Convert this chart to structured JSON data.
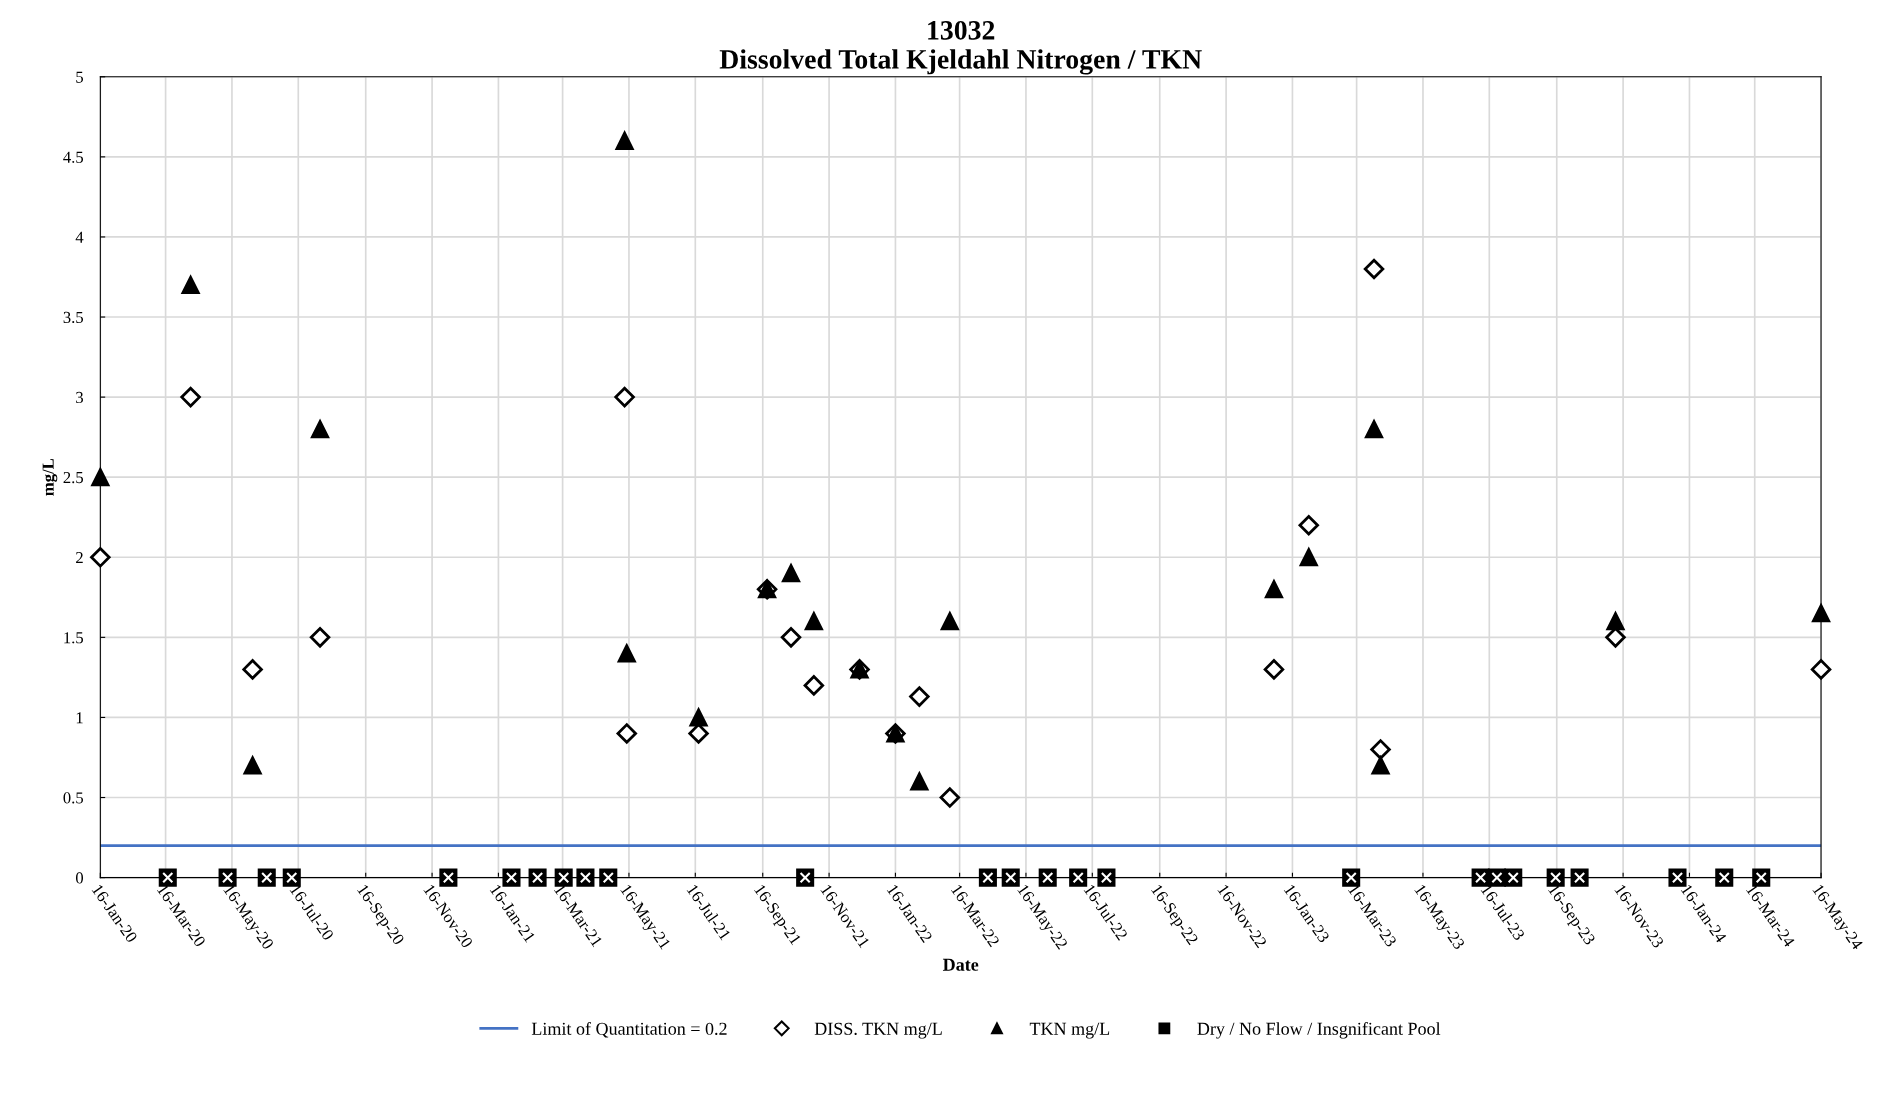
{
  "chart_data": {
    "type": "scatter",
    "title": "13032",
    "subtitle": "Dissolved Total Kjeldahl Nitrogen / TKN",
    "xlabel": "Date",
    "ylabel": "mg/L",
    "xlim": [
      "2020-01-16",
      "2024-05-16"
    ],
    "xticks": [
      {
        "value": "2020-01-16",
        "label": "16-Jan-20"
      },
      {
        "value": "2020-03-16",
        "label": "16-Mar-20"
      },
      {
        "value": "2020-05-16",
        "label": "16-May-20"
      },
      {
        "value": "2020-07-16",
        "label": "16-Jul-20"
      },
      {
        "value": "2020-09-16",
        "label": "16-Sep-20"
      },
      {
        "value": "2020-11-16",
        "label": "16-Nov-20"
      },
      {
        "value": "2021-01-16",
        "label": "16-Jan-21"
      },
      {
        "value": "2021-03-16",
        "label": "16-Mar-21"
      },
      {
        "value": "2021-05-16",
        "label": "16-May-21"
      },
      {
        "value": "2021-07-16",
        "label": "16-Jul-21"
      },
      {
        "value": "2021-09-16",
        "label": "16-Sep-21"
      },
      {
        "value": "2021-11-16",
        "label": "16-Nov-21"
      },
      {
        "value": "2022-01-16",
        "label": "16-Jan-22"
      },
      {
        "value": "2022-03-16",
        "label": "16-Mar-22"
      },
      {
        "value": "2022-05-16",
        "label": "16-May-22"
      },
      {
        "value": "2022-07-16",
        "label": "16-Jul-22"
      },
      {
        "value": "2022-09-16",
        "label": "16-Sep-22"
      },
      {
        "value": "2022-11-16",
        "label": "16-Nov-22"
      },
      {
        "value": "2023-01-16",
        "label": "16-Jan-23"
      },
      {
        "value": "2023-03-16",
        "label": "16-Mar-23"
      },
      {
        "value": "2023-05-16",
        "label": "16-May-23"
      },
      {
        "value": "2023-07-16",
        "label": "16-Jul-23"
      },
      {
        "value": "2023-09-16",
        "label": "16-Sep-23"
      },
      {
        "value": "2023-11-16",
        "label": "16-Nov-23"
      },
      {
        "value": "2024-01-16",
        "label": "16-Jan-24"
      },
      {
        "value": "2024-03-16",
        "label": "16-Mar-24"
      },
      {
        "value": "2024-05-16",
        "label": "16-May-24"
      }
    ],
    "ylim": [
      0,
      5
    ],
    "yticks": [
      0,
      0.5,
      1,
      1.5,
      2,
      2.5,
      3,
      3.5,
      4,
      4.5,
      5
    ],
    "grid": true,
    "legend": "bottom",
    "ref_lines": [
      {
        "axis": "y",
        "value": 0.2,
        "label": "Limit of Quantitation = 0.2",
        "color": "#4472c4",
        "line_style": "solid"
      }
    ],
    "series": [
      {
        "name": "DISS. TKN mg/L",
        "color": "#ffffff",
        "marker": "diamond",
        "x": [
          "2020-01-16",
          "2020-04-08",
          "2020-06-04",
          "2020-08-05",
          "2021-05-12",
          "2021-05-14",
          "2021-07-19",
          "2021-09-20",
          "2021-10-12",
          "2021-11-02",
          "2021-12-14",
          "2022-01-16",
          "2022-02-07",
          "2022-03-07",
          "2022-12-30",
          "2023-01-31",
          "2023-04-01",
          "2023-04-07",
          "2023-11-09",
          "2024-05-16"
        ],
        "values": [
          2.0,
          3.0,
          1.3,
          1.5,
          3.0,
          0.9,
          0.9,
          1.8,
          1.5,
          1.2,
          1.3,
          0.9,
          1.13,
          0.5,
          1.3,
          2.2,
          3.8,
          0.8,
          1.5,
          1.3
        ]
      },
      {
        "name": "TKN mg/L",
        "color": "#000000",
        "marker": "triangle",
        "x": [
          "2020-01-16",
          "2020-04-08",
          "2020-06-04",
          "2020-08-05",
          "2021-05-12",
          "2021-05-14",
          "2021-07-19",
          "2021-09-20",
          "2021-10-12",
          "2021-11-02",
          "2021-12-14",
          "2022-01-16",
          "2022-02-07",
          "2022-03-07",
          "2022-12-30",
          "2023-01-31",
          "2023-04-01",
          "2023-04-07",
          "2023-11-09",
          "2024-05-16"
        ],
        "values": [
          2.5,
          3.7,
          0.7,
          2.8,
          4.6,
          1.4,
          1.0,
          1.8,
          1.9,
          1.6,
          1.3,
          0.9,
          0.6,
          1.6,
          1.8,
          2.0,
          2.8,
          0.7,
          1.6,
          1.65
        ]
      },
      {
        "name": "Dry / No Flow / Insgnificant Pool",
        "color": "#000000",
        "marker": "square",
        "x": [
          "2020-03-18",
          "2020-05-12",
          "2020-06-17",
          "2020-07-10",
          "2020-12-01",
          "2021-01-28",
          "2021-02-21",
          "2021-03-17",
          "2021-04-06",
          "2021-04-27",
          "2021-10-25",
          "2022-04-11",
          "2022-05-02",
          "2022-06-05",
          "2022-07-03",
          "2022-07-29",
          "2023-03-11",
          "2023-07-08",
          "2023-07-23",
          "2023-08-07",
          "2023-09-15",
          "2023-10-07",
          "2024-01-05",
          "2024-02-17",
          "2024-03-22"
        ],
        "values": [
          0,
          0,
          0,
          0,
          0,
          0,
          0,
          0,
          0,
          0,
          0,
          0,
          0,
          0,
          0,
          0,
          0,
          0,
          0,
          0,
          0,
          0,
          0,
          0,
          0
        ]
      }
    ]
  }
}
